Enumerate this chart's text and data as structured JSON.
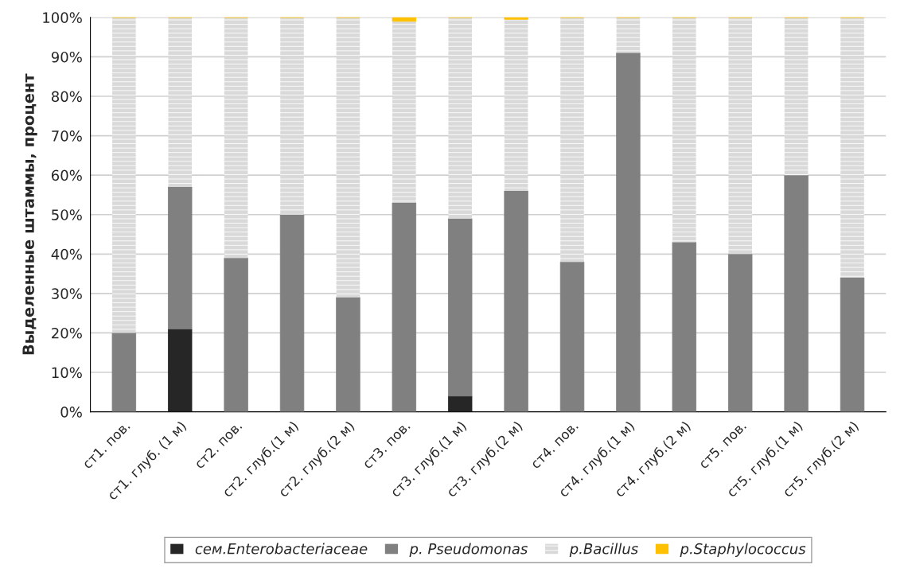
{
  "chart_data": {
    "type": "bar",
    "stacked": true,
    "ylabel": "Выделенные штаммы, процент",
    "categories": [
      "ст1. пов.",
      "ст1. глуб. (1 м)",
      "ст2. пов.",
      "ст2. глуб.(1 м)",
      "ст2. глуб.(2 м)",
      "ст3. пов.",
      "ст3. глуб.(1 м)",
      "ст3. глуб.(2 м)",
      "ст4. пов.",
      "ст4. глуб.(1 м)",
      "ст4. глуб.(2 м)",
      "ст5. пов.",
      "ст5. глуб.(1 м)",
      "ст5. глуб.(2 м)"
    ],
    "series": [
      {
        "name": "сем.Enterobacteriaceae",
        "color": "#262626",
        "values": [
          0,
          21,
          0,
          0,
          0,
          0,
          4,
          0,
          0,
          0,
          0,
          0,
          0,
          0
        ]
      },
      {
        "name": "р. Pseudomonas",
        "color": "#808080",
        "values": [
          20,
          36,
          39,
          50,
          29,
          53,
          45,
          56,
          38,
          91,
          43,
          40,
          60,
          34
        ]
      },
      {
        "name": "р.Bacillus",
        "color": "#d9d9d9",
        "values": [
          80,
          43,
          61,
          50,
          71,
          46,
          51,
          43.5,
          62,
          9,
          57,
          60,
          40,
          66
        ]
      },
      {
        "name": "р.Staphylococcus",
        "color": "#ffc000",
        "values": [
          0,
          0,
          0,
          0,
          0,
          1,
          0,
          0.5,
          0,
          0,
          0,
          0,
          0,
          0
        ]
      }
    ],
    "ylim": [
      0,
      100
    ],
    "yticks": [
      {
        "value": 0,
        "label": "0%"
      },
      {
        "value": 10,
        "label": "10%"
      },
      {
        "value": 20,
        "label": "20%"
      },
      {
        "value": 30,
        "label": "30%"
      },
      {
        "value": 40,
        "label": "40%"
      },
      {
        "value": 50,
        "label": "50%"
      },
      {
        "value": 60,
        "label": "60%"
      },
      {
        "value": 70,
        "label": "70%"
      },
      {
        "value": 80,
        "label": "80%"
      },
      {
        "value": 90,
        "label": "90%"
      },
      {
        "value": 100,
        "label": "100%"
      }
    ],
    "grid": "y",
    "legend": "bottom"
  }
}
